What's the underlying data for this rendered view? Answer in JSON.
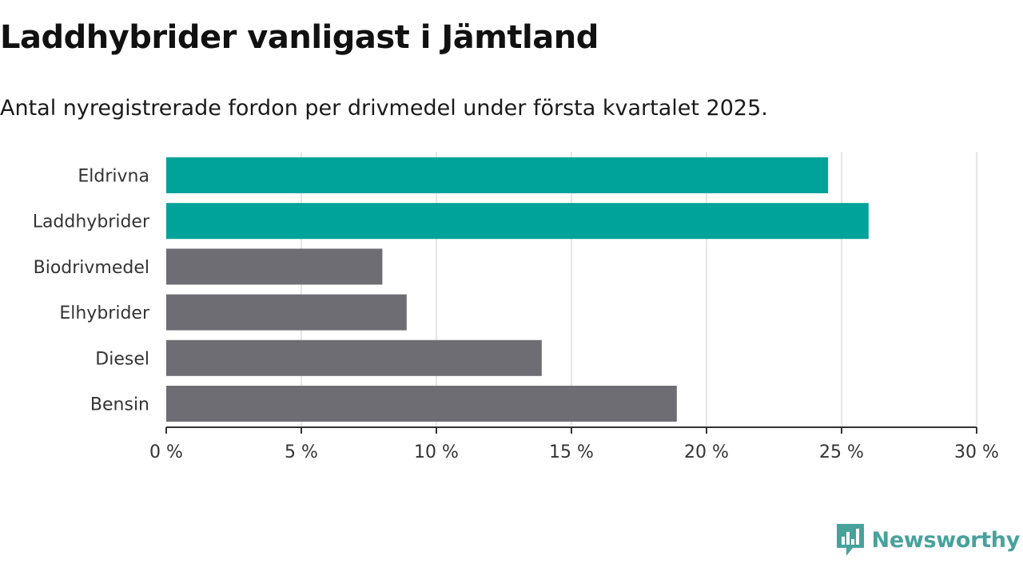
{
  "title": "Laddhybrider vanligast i Jämtland",
  "subtitle": "Antal nyregistrerade fordon per drivmedel under första kvartalet 2025.",
  "brand": {
    "name": "Newsworthy",
    "icon": "newsworthy-logo-icon",
    "color": "#48a29c"
  },
  "colors": {
    "highlight": "#00a39a",
    "default": "#6e6d73",
    "grid": "#dddddd",
    "axis": "#333333"
  },
  "chart_data": {
    "type": "bar",
    "orientation": "horizontal",
    "categories": [
      "Eldrivna",
      "Laddhybrider",
      "Biodrivmedel",
      "Elhybrider",
      "Diesel",
      "Bensin"
    ],
    "values": [
      24.5,
      26.0,
      8.0,
      8.9,
      13.9,
      18.9
    ],
    "highlighted": [
      true,
      true,
      false,
      false,
      false,
      false
    ],
    "xlim": [
      0,
      30
    ],
    "xticks": [
      0,
      5,
      10,
      15,
      20,
      25,
      30
    ],
    "xtick_labels": [
      "0 %",
      "5 %",
      "10 %",
      "15 %",
      "20 %",
      "25 %",
      "30 %"
    ],
    "xlabel": "",
    "ylabel": "",
    "grid": "vertical"
  }
}
